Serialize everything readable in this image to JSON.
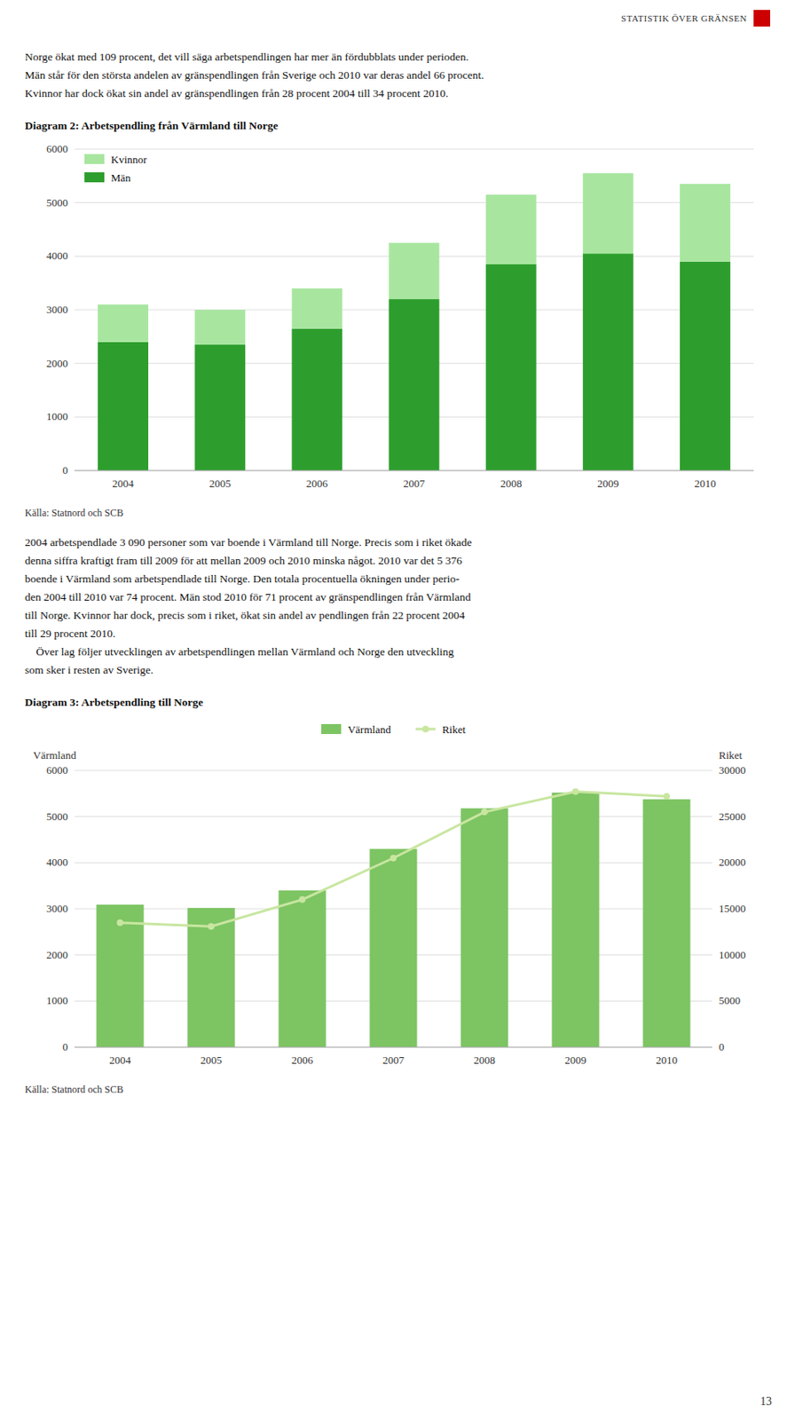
{
  "page": {
    "header": "STATISTIK ÖVER GRÄNSEN",
    "header_box_color": "#cc0000",
    "paragraphs_1": [
      "Norge ökat med 109 procent, det vill säga arbetspendlingen har mer än fördubblats under perioden.",
      "Män står för den största andelen av gränspendlingen från Sverige och 2010 var deras andel 66 procent.",
      "Kvinnor har dock ökat sin andel av gränspendlingen från 28 procent 2004 till 34 procent 2010."
    ],
    "paragraphs_2": [
      "2004 arbetspendlade 3 090 personer som var boende i Värmland till Norge. Precis som i riket ökade",
      "denna siffra kraftigt fram till 2009 för att mellan 2009 och 2010 minska något. 2010 var det 5 376",
      "boende i Värmland som arbetspendlade till Norge. Den totala procentuella ökningen under perio-",
      "den 2004 till 2010 var 74 procent. Män stod 2010 för 71 procent av gränspendlingen från Värmland",
      "till Norge. Kvinnor har dock, precis som i riket, ökat sin andel av pendlingen från 22 procent 2004",
      "till 29 procent 2010.",
      "    Över lag följer utvecklingen av arbetspendlingen mellan Värmland och Norge den utveckling",
      "som sker i resten av Sverige."
    ],
    "page_number": "13"
  },
  "chart_data": [
    {
      "type": "bar",
      "stacked": true,
      "title": "Diagram 2: Arbetspendling från Värmland till Norge",
      "source": "Källa: Statnord och SCB",
      "categories": [
        "2004",
        "2005",
        "2006",
        "2007",
        "2008",
        "2009",
        "2010"
      ],
      "series": [
        {
          "name": "Män",
          "color": "#2d9e2d",
          "values": [
            2400,
            2350,
            2650,
            3200,
            3850,
            4050,
            3900
          ]
        },
        {
          "name": "Kvinnor",
          "color": "#a8e6a0",
          "values": [
            700,
            650,
            750,
            1050,
            1300,
            1500,
            1450
          ]
        }
      ],
      "ylim": [
        0,
        6000
      ],
      "yticks": [
        0,
        1000,
        2000,
        3000,
        4000,
        5000,
        6000
      ],
      "grid": true,
      "legend": "upper left"
    },
    {
      "type": "bar",
      "title": "Diagram 3: Arbetspendling till Norge",
      "source": "Källa: Statnord och SCB",
      "ylabel": "Värmland",
      "y2label": "Riket",
      "categories": [
        "2004",
        "2005",
        "2006",
        "2007",
        "2008",
        "2009",
        "2010"
      ],
      "series": [
        {
          "name": "Värmland",
          "type": "bar",
          "color": "#7dc463",
          "values": [
            3090,
            3020,
            3400,
            4300,
            5180,
            5520,
            5376
          ]
        },
        {
          "name": "Riket",
          "type": "line",
          "color": "#c8e6a0",
          "marker": "circle",
          "axis": "y2",
          "values": [
            13500,
            13100,
            16000,
            20500,
            25500,
            27700,
            27200
          ]
        }
      ],
      "ylim": [
        0,
        6000
      ],
      "yticks": [
        0,
        1000,
        2000,
        3000,
        4000,
        5000,
        6000
      ],
      "y2lim": [
        0,
        30000
      ],
      "y2ticks": [
        0,
        5000,
        10000,
        15000,
        20000,
        25000,
        30000
      ],
      "grid": true,
      "legend": "upper center"
    }
  ]
}
